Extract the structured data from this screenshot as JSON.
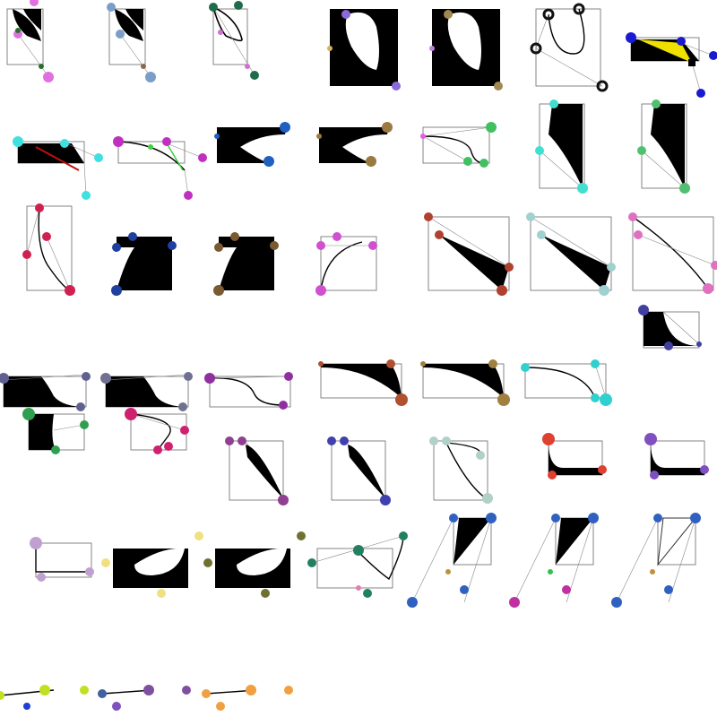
{
  "colors": {
    "background": "#ffffff",
    "fill": "#000000",
    "box_stroke": "#666666",
    "guide_stroke": "#888888"
  },
  "tiles": [
    {
      "id": "1",
      "shape": "blob",
      "dot": "#e070e0",
      "accent": "#2b6e2b"
    },
    {
      "id": "2",
      "shape": "blob",
      "dot": "#7a9ec8",
      "accent": "#8a6a4a"
    },
    {
      "id": "3",
      "shape": "curve",
      "dot": "#1f6b4a",
      "accent": "#d070d0"
    },
    {
      "id": "4",
      "shape": "hole",
      "dot": "#8a6ad8",
      "accent": "#d4b060"
    },
    {
      "id": "5",
      "shape": "hole",
      "dot": "#a08850",
      "accent": "#c080e0"
    },
    {
      "id": "6",
      "shape": "curve",
      "dot": "#111111",
      "accent": "#111111"
    },
    {
      "id": "7",
      "shape": "wedge",
      "dot": "#1a1ad0",
      "accent": "#f0e000"
    },
    {
      "id": "8",
      "shape": "wedge",
      "dot": "#40e0e0",
      "accent": "#c01010"
    },
    {
      "id": "9",
      "shape": "curve",
      "dot": "#c030c0",
      "accent": "#40d040"
    },
    {
      "id": "10",
      "shape": "spike",
      "dot": "#2060c0",
      "accent": "#2060c0"
    },
    {
      "id": "11",
      "shape": "spike",
      "dot": "#9a7a40",
      "accent": "#9a7a40"
    },
    {
      "id": "12",
      "shape": "curve",
      "dot": "#40c060",
      "accent": "#e060e0"
    },
    {
      "id": "13",
      "shape": "tall",
      "dot": "#40e0d0",
      "accent": "#40e0d0"
    },
    {
      "id": "14",
      "shape": "tall",
      "dot": "#50c070",
      "accent": "#50c070"
    }
  ]
}
